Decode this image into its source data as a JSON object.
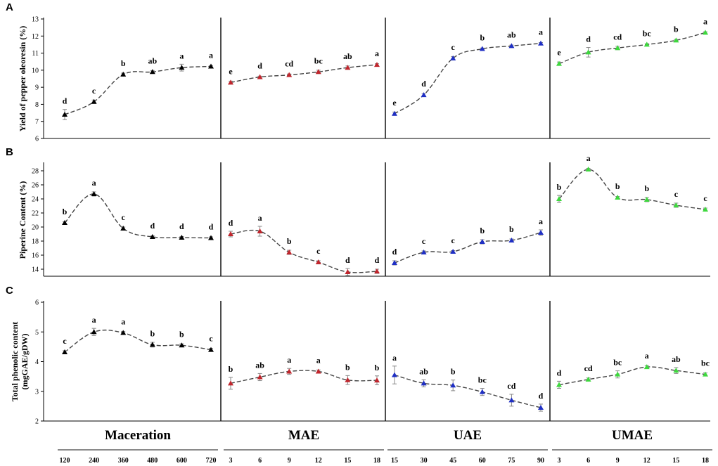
{
  "chart_data": {
    "type": "line",
    "groups": [
      {
        "name": "Maceration",
        "x": [
          "120",
          "240",
          "360",
          "480",
          "600",
          "720"
        ],
        "color": "#000000"
      },
      {
        "name": "MAE",
        "x": [
          "3",
          "6",
          "9",
          "12",
          "15",
          "18"
        ],
        "color": "#c0262d"
      },
      {
        "name": "UAE",
        "x": [
          "15",
          "30",
          "45",
          "60",
          "75",
          "90"
        ],
        "color": "#1f2fc4"
      },
      {
        "name": "UMAE",
        "x": [
          "3",
          "6",
          "9",
          "12",
          "15",
          "18"
        ],
        "color": "#3ed83e"
      }
    ],
    "panels": [
      {
        "letter": "A",
        "ylabel": "Yield of pepper oleoresin (%)",
        "ylim": [
          6,
          13
        ],
        "yticks": [
          "6",
          "7",
          "8",
          "9",
          "10",
          "11",
          "12",
          "13"
        ],
        "series": [
          {
            "values": [
              7.4,
              8.15,
              9.75,
              9.9,
              10.15,
              10.22
            ],
            "err": [
              0.3,
              0.1,
              0.08,
              0.08,
              0.2,
              0.05
            ],
            "labels": [
              "d",
              "c",
              "b",
              "ab",
              "a",
              "a"
            ]
          },
          {
            "values": [
              9.28,
              9.6,
              9.72,
              9.9,
              10.15,
              10.32
            ],
            "err": [
              0.08,
              0.05,
              0.06,
              0.1,
              0.1,
              0.06
            ],
            "labels": [
              "e",
              "d",
              "cd",
              "bc",
              "ab",
              "a"
            ]
          },
          {
            "values": [
              7.45,
              8.55,
              10.7,
              11.25,
              11.42,
              11.57
            ],
            "err": [
              0.1,
              0.08,
              0.1,
              0.05,
              0.05,
              0.05
            ],
            "labels": [
              "e",
              "d",
              "c",
              "b",
              "ab",
              "a"
            ]
          },
          {
            "values": [
              10.38,
              11.05,
              11.3,
              11.5,
              11.75,
              12.2
            ],
            "err": [
              0.1,
              0.28,
              0.1,
              0.05,
              0.05,
              0.05
            ],
            "labels": [
              "e",
              "d",
              "cd",
              "bc",
              "b",
              "a"
            ]
          }
        ]
      },
      {
        "letter": "B",
        "ylabel": "Piperine Content (%)",
        "ylim": [
          13,
          29
        ],
        "yticks": [
          "14",
          "16",
          "18",
          "20",
          "22",
          "24",
          "26",
          "28"
        ],
        "series": [
          {
            "values": [
              20.6,
              24.7,
              19.8,
              18.6,
              18.5,
              18.45
            ],
            "err": [
              0.15,
              0.3,
              0.2,
              0.15,
              0.15,
              0.15
            ],
            "labels": [
              "b",
              "a",
              "c",
              "d",
              "d",
              "d"
            ]
          },
          {
            "values": [
              19.0,
              19.4,
              16.4,
              15.0,
              13.6,
              13.7
            ],
            "err": [
              0.4,
              0.7,
              0.3,
              0.2,
              0.5,
              0.3
            ],
            "labels": [
              "d",
              "a",
              "b",
              "c",
              "d",
              "d"
            ]
          },
          {
            "values": [
              14.9,
              16.4,
              16.5,
              17.9,
              18.1,
              19.2
            ],
            "err": [
              0.3,
              0.2,
              0.15,
              0.3,
              0.2,
              0.4
            ],
            "labels": [
              "d",
              "c",
              "c",
              "b",
              "b",
              "a"
            ]
          },
          {
            "values": [
              24.0,
              28.2,
              24.2,
              23.9,
              23.1,
              22.5
            ],
            "err": [
              0.5,
              0.15,
              0.15,
              0.3,
              0.3,
              0.2
            ],
            "labels": [
              "b",
              "a",
              "b",
              "b",
              "c",
              "c"
            ]
          }
        ]
      },
      {
        "letter": "C",
        "ylabel": "Total phenolic content",
        "ylabel2": "(mgGAE/gDW)",
        "ylim": [
          2,
          6
        ],
        "yticks": [
          "2",
          "3",
          "4",
          "5",
          "6"
        ],
        "series": [
          {
            "values": [
              4.32,
              5.0,
              4.97,
              4.57,
              4.55,
              4.4
            ],
            "err": [
              0.05,
              0.12,
              0.05,
              0.08,
              0.05,
              0.05
            ],
            "labels": [
              "c",
              "a",
              "a",
              "b",
              "b",
              "c"
            ]
          },
          {
            "values": [
              3.27,
              3.48,
              3.67,
              3.67,
              3.38,
              3.37
            ],
            "err": [
              0.2,
              0.12,
              0.1,
              0.05,
              0.15,
              0.15
            ],
            "labels": [
              "b",
              "ab",
              "a",
              "a",
              "b",
              "b"
            ]
          },
          {
            "values": [
              3.55,
              3.27,
              3.2,
              2.98,
              2.7,
              2.45
            ],
            "err": [
              0.3,
              0.12,
              0.18,
              0.12,
              0.2,
              0.12
            ],
            "labels": [
              "a",
              "ab",
              "b",
              "bc",
              "cd",
              "d"
            ]
          },
          {
            "values": [
              3.22,
              3.4,
              3.57,
              3.82,
              3.7,
              3.57
            ],
            "err": [
              0.12,
              0.05,
              0.12,
              0.05,
              0.1,
              0.05
            ],
            "labels": [
              "d",
              "cd",
              "bc",
              "a",
              "ab",
              "bc"
            ]
          }
        ]
      }
    ]
  }
}
